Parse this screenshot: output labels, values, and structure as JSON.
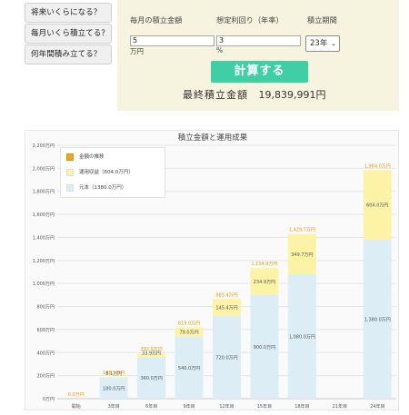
{
  "menu": {
    "items": [
      {
        "label": "将来いくらになる？"
      },
      {
        "label": "毎月いくら積立てる？"
      },
      {
        "label": "何年間積み立てる？"
      }
    ]
  },
  "calculator": {
    "monthly": {
      "label": "毎月の積立金額",
      "value": "5",
      "unit": "万円"
    },
    "rate": {
      "label": "想定利回り（年率）",
      "value": "3",
      "unit": "%"
    },
    "period": {
      "label": "積立期間",
      "selected": "23年"
    },
    "calc_button": "計算する",
    "result_label": "最終積立金額",
    "result_value": "19,839,991円"
  },
  "colors": {
    "accent": "#3ecfa5",
    "panel_bg": "#f6f3de",
    "principal": "#dcedf6",
    "gain": "#fcf3a6",
    "total_label": "#e69b00"
  },
  "chart_data": {
    "type": "bar",
    "title": "積立金額と運用成果",
    "categories": [
      "開始",
      "3年目",
      "6年目",
      "9年目",
      "12年目",
      "15年目",
      "18年目",
      "21年目",
      "24年目"
    ],
    "y_ticks": [
      "0万円",
      "200万円",
      "400万円",
      "600万円",
      "800万円",
      "1,000万円",
      "1,200万円",
      "1,400万円",
      "1,600万円",
      "1,800万円",
      "2,000万円",
      "2,200万円"
    ],
    "ylim": [
      0,
      2200
    ],
    "grid": true,
    "legend_placement": "top-left",
    "legend": [
      "金額の推移",
      "運用収益（604.0万円）",
      "元本（1380.0万円）"
    ],
    "series": [
      {
        "name": "元本（1380.0万円）",
        "values": [
          0,
          180,
          360,
          540,
          720,
          900,
          1080,
          null,
          1380
        ],
        "labels": [
          "",
          "180.0万円",
          "360.0万円",
          "540.0万円",
          "720.0万円",
          "900.0万円",
          "1,080.0万円",
          "",
          "1,380.0万円"
        ]
      },
      {
        "name": "運用収益（604.0万円）",
        "values": [
          0,
          8.1,
          33.9,
          79.0,
          145.4,
          234.9,
          349.7,
          null,
          604.0
        ],
        "labels": [
          "",
          "8.1万円",
          "33.9万円",
          "79.0万円",
          "145.4万円",
          "234.9万円",
          "349.7万円",
          "",
          "604.0万円"
        ]
      }
    ],
    "totals": [
      "0.0万円",
      "188.1万円",
      "393.9万円",
      "619.0万円",
      "865.4万円",
      "1,134.9万円",
      "1,429.7万円",
      "",
      "1,984.0万円"
    ]
  }
}
